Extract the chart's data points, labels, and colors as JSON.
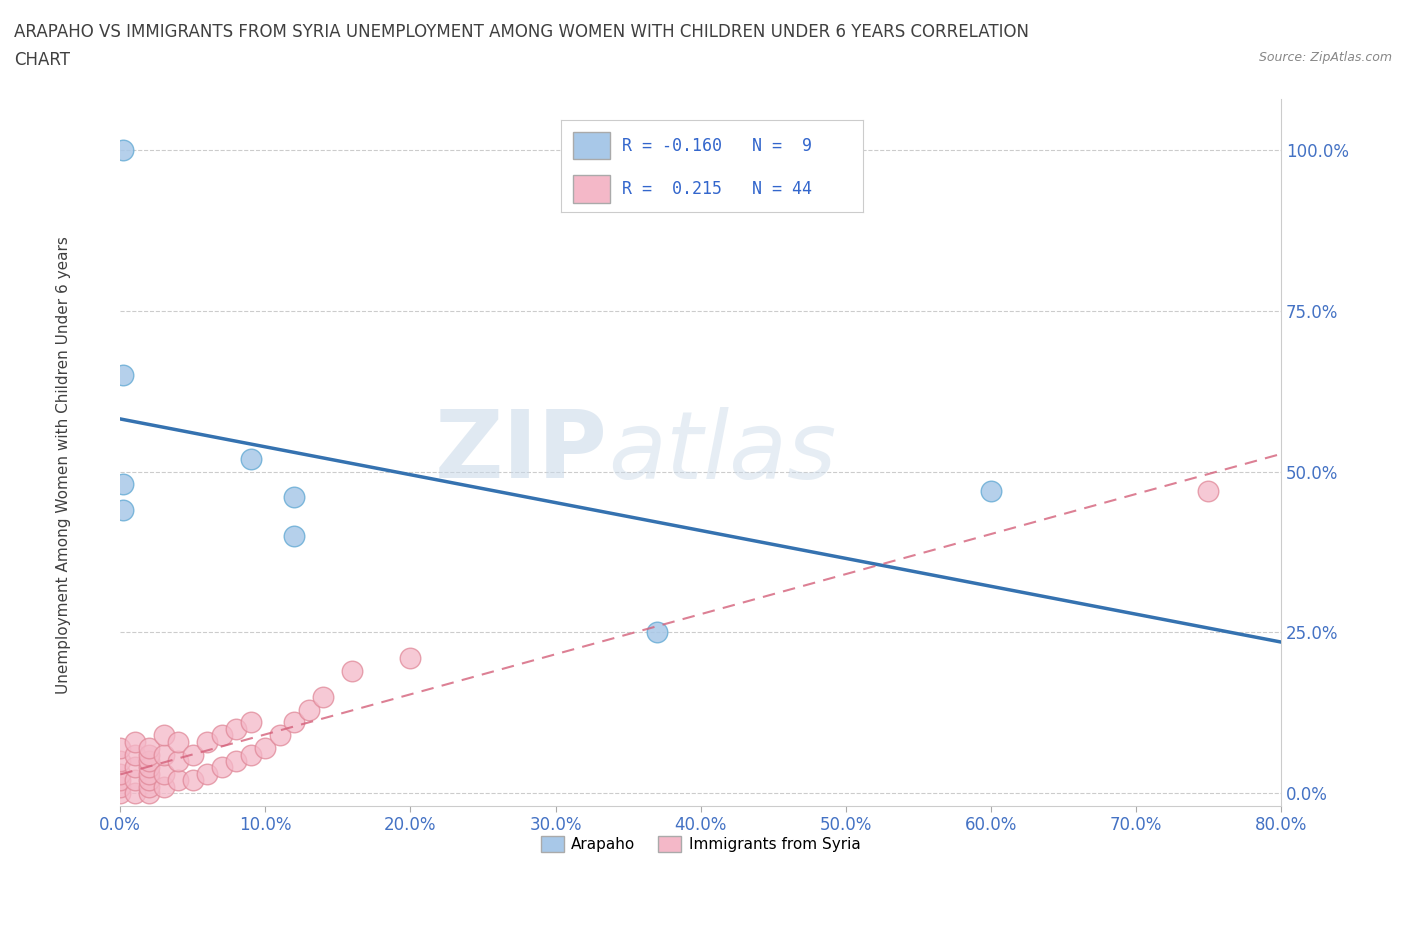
{
  "title_line1": "ARAPAHO VS IMMIGRANTS FROM SYRIA UNEMPLOYMENT AMONG WOMEN WITH CHILDREN UNDER 6 YEARS CORRELATION",
  "title_line2": "CHART",
  "source_text": "Source: ZipAtlas.com",
  "ylabel_label": "Unemployment Among Women with Children Under 6 years",
  "ylabel_ticks": [
    "0.0%",
    "25.0%",
    "50.0%",
    "75.0%",
    "100.0%"
  ],
  "xlabel_ticks": [
    "0.0%",
    "10.0%",
    "20.0%",
    "30.0%",
    "40.0%",
    "50.0%",
    "60.0%",
    "70.0%",
    "80.0%"
  ],
  "xlim": [
    0.0,
    0.8
  ],
  "ylim": [
    -0.02,
    1.08
  ],
  "arapaho_color": "#a8c8e8",
  "arapaho_edge_color": "#6baed6",
  "syria_color": "#f4b8c8",
  "syria_edge_color": "#e08898",
  "arapaho_line_color": "#3572b0",
  "syria_line_color": "#d4607a",
  "arapaho_scatter_x": [
    0.002,
    0.002,
    0.002,
    0.002,
    0.09,
    0.12,
    0.12,
    0.6,
    0.37
  ],
  "arapaho_scatter_y": [
    1.0,
    0.65,
    0.48,
    0.44,
    0.52,
    0.46,
    0.4,
    0.47,
    0.25
  ],
  "syria_scatter_x": [
    0.0,
    0.0,
    0.0,
    0.0,
    0.0,
    0.0,
    0.01,
    0.01,
    0.01,
    0.01,
    0.01,
    0.02,
    0.02,
    0.02,
    0.02,
    0.02,
    0.02,
    0.02,
    0.02,
    0.03,
    0.03,
    0.03,
    0.03,
    0.04,
    0.04,
    0.04,
    0.05,
    0.05,
    0.06,
    0.06,
    0.07,
    0.07,
    0.08,
    0.08,
    0.09,
    0.09,
    0.1,
    0.11,
    0.12,
    0.13,
    0.14,
    0.16,
    0.2,
    0.75
  ],
  "syria_scatter_y": [
    0.0,
    0.01,
    0.02,
    0.03,
    0.05,
    0.07,
    0.0,
    0.02,
    0.04,
    0.06,
    0.08,
    0.0,
    0.01,
    0.02,
    0.03,
    0.04,
    0.05,
    0.06,
    0.07,
    0.01,
    0.03,
    0.06,
    0.09,
    0.02,
    0.05,
    0.08,
    0.02,
    0.06,
    0.03,
    0.08,
    0.04,
    0.09,
    0.05,
    0.1,
    0.06,
    0.11,
    0.07,
    0.09,
    0.11,
    0.13,
    0.15,
    0.19,
    0.21,
    0.47
  ],
  "arapaho_R": -0.16,
  "arapaho_N": 9,
  "syria_R": 0.215,
  "syria_N": 44,
  "legend_label_arapaho": "Arapaho",
  "legend_label_syria": "Immigrants from Syria",
  "watermark_zip": "ZIP",
  "watermark_atlas": "atlas",
  "grid_color": "#cccccc",
  "background_color": "#ffffff",
  "title_color": "#404040",
  "tick_color": "#4472c4",
  "r_text_color": "#3366cc"
}
